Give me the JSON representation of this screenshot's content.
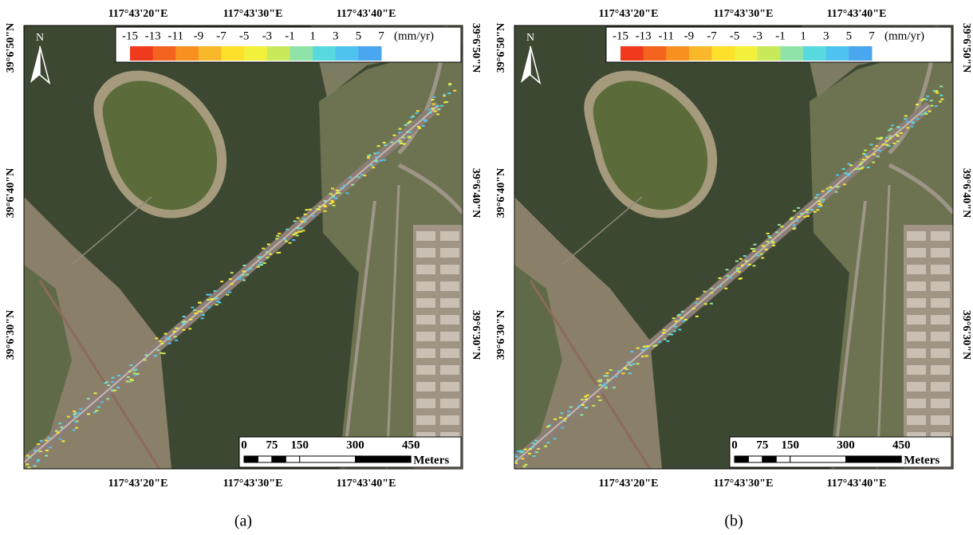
{
  "panels": [
    {
      "caption": "(a)",
      "top_ticks": [
        "117°43'20\"E",
        "117°43'30\"E",
        "117°43'40\"E"
      ],
      "bottom_ticks": [
        "117°43'20\"E",
        "117°43'30\"E",
        "117°43'40\"E"
      ],
      "left_ticks": [
        "39°6'50\"N",
        "39°6'40\"N",
        "39°6'30\"N"
      ],
      "right_ticks": [
        "39°6'50\"N",
        "39°6'40\"N",
        "39°6'30\"N"
      ],
      "north": "N",
      "legend": {
        "ticks": [
          "-15",
          "-13",
          "-11",
          "-9",
          "-7",
          "-5",
          "-3",
          "-1",
          "1",
          "3",
          "5",
          "7"
        ],
        "unit": "(mm/yr)",
        "colors": [
          "#f03a1e",
          "#f5641e",
          "#f7901e",
          "#f9b829",
          "#fde02a",
          "#f3f03c",
          "#c8ea5a",
          "#8fe3a8",
          "#58d9e0",
          "#4fc3ef",
          "#4aa6ef"
        ]
      },
      "scale": {
        "ticks": [
          "0",
          "75",
          "150",
          "300",
          "450"
        ],
        "unit": "Meters"
      }
    },
    {
      "caption": "(b)",
      "top_ticks": [
        "117°43'20\"E",
        "117°43'30\"E",
        "117°43'40\"E"
      ],
      "bottom_ticks": [
        "117°43'20\"E",
        "117°43'30\"E",
        "117°43'40\"E"
      ],
      "left_ticks": [
        "39°6'50\"N",
        "39°6'40\"N",
        "39°6'30\"N"
      ],
      "right_ticks": [
        "39°6'50\"N",
        "39°6'40\"N",
        "39°6'30\"N"
      ],
      "north": "N",
      "legend": {
        "ticks": [
          "-15",
          "-13",
          "-11",
          "-9",
          "-7",
          "-5",
          "-3",
          "-1",
          "1",
          "3",
          "5",
          "7"
        ],
        "unit": "(mm/yr)",
        "colors": [
          "#f03a1e",
          "#f5641e",
          "#f7901e",
          "#f9b829",
          "#fde02a",
          "#f3f03c",
          "#c8ea5a",
          "#8fe3a8",
          "#58d9e0",
          "#4fc3ef",
          "#4aa6ef"
        ]
      },
      "scale": {
        "ticks": [
          "0",
          "75",
          "150",
          "300",
          "450"
        ],
        "unit": "Meters"
      }
    }
  ]
}
